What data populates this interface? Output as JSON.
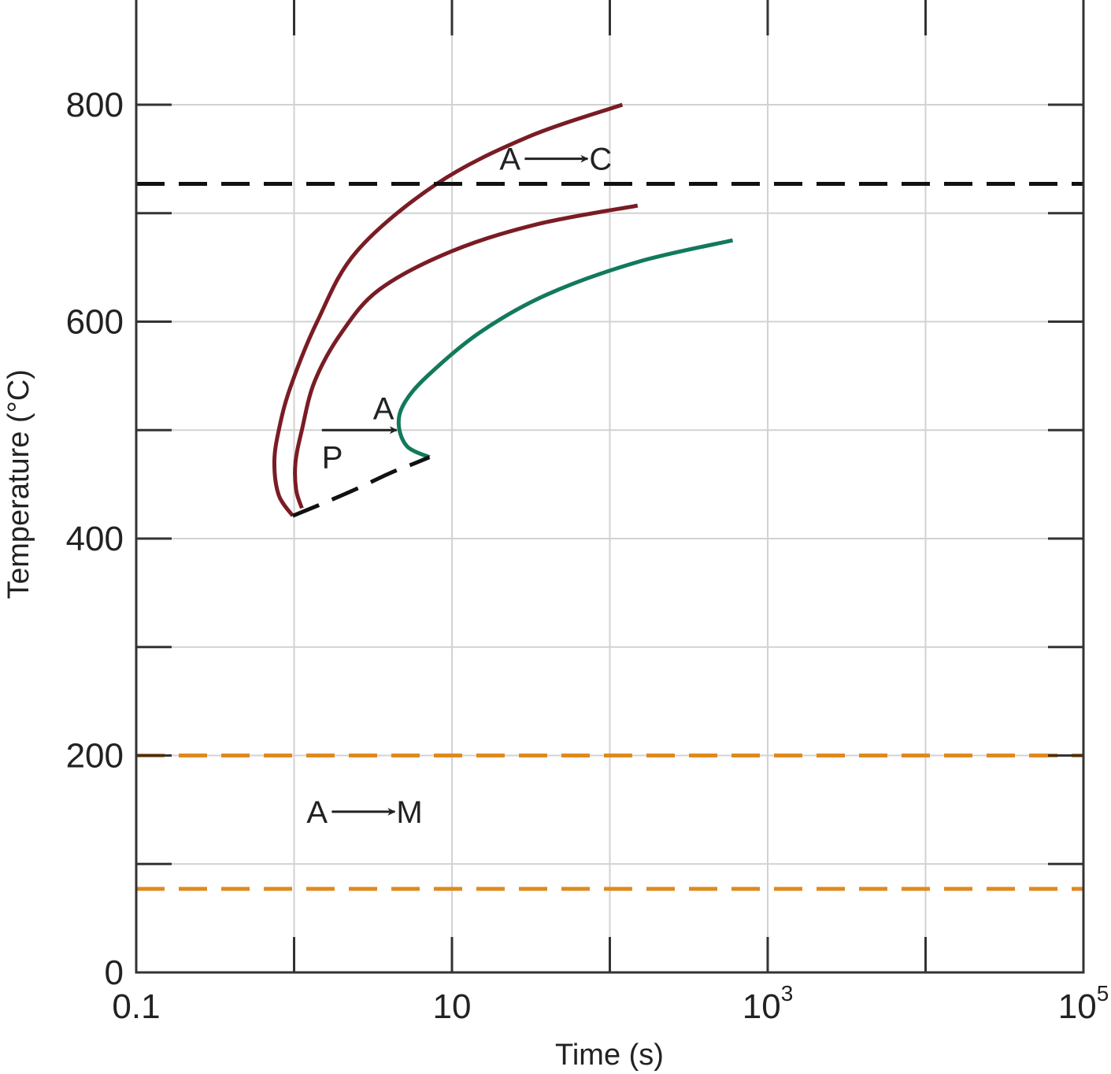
{
  "chart_data": {
    "type": "line",
    "xlabel": "Time (s)",
    "ylabel": "Temperature (°C)",
    "x_scale": "log",
    "xlim": [
      0.1,
      100000
    ],
    "ylim": [
      0,
      800
    ],
    "grid": true,
    "x_ticks": [
      {
        "value": 0.1,
        "base": "0.1",
        "exp": ""
      },
      {
        "value": 10,
        "base": "10",
        "exp": ""
      },
      {
        "value": 1000,
        "base": "10",
        "exp": "3"
      },
      {
        "value": 100000,
        "base": "10",
        "exp": "5"
      }
    ],
    "y_ticks": [
      {
        "value": 0,
        "label": "0"
      },
      {
        "value": 200,
        "label": "200"
      },
      {
        "value": 400,
        "label": "400"
      },
      {
        "value": 600,
        "label": "600"
      },
      {
        "value": 800,
        "label": "800"
      }
    ],
    "series": [
      {
        "style": "solid",
        "color": "#7a1c24",
        "x": [
          120,
          30,
          8,
          2.5,
          1.4,
          0.95,
          0.8,
          0.75,
          0.8,
          0.98
        ],
        "y": [
          800,
          770,
          727,
          665,
          600,
          540,
          500,
          470,
          440,
          421
        ]
      },
      {
        "style": "solid",
        "color": "#7a1c24",
        "x": [
          150,
          35,
          10,
          3.5,
          2,
          1.35,
          1.12,
          1.02,
          1.03,
          1.12
        ],
        "y": [
          707,
          690,
          665,
          630,
          590,
          545,
          500,
          470,
          445,
          428
        ]
      },
      {
        "style": "solid",
        "color": "#12795c",
        "x": [
          600,
          150,
          40,
          15,
          7,
          5,
          4.6,
          5.2,
          7.2
        ],
        "y": [
          675,
          655,
          625,
          590,
          550,
          525,
          505,
          485,
          475
        ]
      },
      {
        "style": "dashed",
        "color": "#111111",
        "x": [
          0.98,
          1.5,
          2.5,
          4,
          5.5,
          7.2
        ],
        "y": [
          421,
          432,
          446,
          460,
          468,
          475
        ]
      },
      {
        "style": "dashed",
        "color": "#111111",
        "x": [
          0.1,
          100000
        ],
        "y": [
          727,
          727
        ]
      },
      {
        "style": "dashed",
        "color": "#e08a1e",
        "x": [
          0.1,
          100000
        ],
        "y": [
          200,
          200
        ]
      },
      {
        "style": "dashed",
        "color": "#e08a1e",
        "x": [
          0.1,
          100000
        ],
        "y": [
          77,
          77
        ]
      }
    ],
    "annotations": [
      {
        "from": "A",
        "to": "C",
        "x": 20,
        "y": 740
      },
      {
        "from": "P",
        "to": "A",
        "x": 1.5,
        "y": 500
      },
      {
        "from": "A",
        "to": "M",
        "x": 1.2,
        "y": 138
      }
    ]
  }
}
